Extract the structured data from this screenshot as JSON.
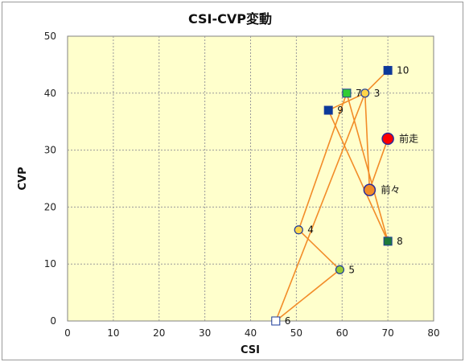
{
  "chart_data": {
    "type": "scatter",
    "title": "CSI-CVP変動",
    "xlabel": "CSI",
    "ylabel": "CVP",
    "xlim": [
      0,
      80
    ],
    "ylim": [
      0,
      50
    ],
    "xticks": [
      0,
      10,
      20,
      30,
      40,
      50,
      60,
      70,
      80
    ],
    "yticks": [
      0,
      10,
      20,
      30,
      40,
      50
    ],
    "grid": true,
    "plot_background": "#ffffcc",
    "line_color": "#f28c28",
    "path_order": [
      "10",
      "3",
      "9",
      "8",
      "7",
      "4",
      "5",
      "6",
      "3",
      "前々",
      "前走"
    ],
    "points": [
      {
        "label": "10",
        "x": 70,
        "y": 44,
        "marker": "square",
        "fill": "#0a3a9a"
      },
      {
        "label": "3",
        "x": 65,
        "y": 40,
        "marker": "circle",
        "fill": "#ffd54a"
      },
      {
        "label": "9",
        "x": 57,
        "y": 37,
        "marker": "square",
        "fill": "#0a3a9a"
      },
      {
        "label": "8",
        "x": 70,
        "y": 14,
        "marker": "square",
        "fill": "#1f7a3a"
      },
      {
        "label": "7",
        "x": 61,
        "y": 40,
        "marker": "square",
        "fill": "#33cc33"
      },
      {
        "label": "4",
        "x": 50.5,
        "y": 16,
        "marker": "circle",
        "fill": "#ffd54a"
      },
      {
        "label": "5",
        "x": 59.5,
        "y": 9,
        "marker": "circle",
        "fill": "#9acd32"
      },
      {
        "label": "6",
        "x": 45.5,
        "y": 0,
        "marker": "square",
        "fill": "#ffffff"
      },
      {
        "label": "前々",
        "x": 66,
        "y": 23,
        "marker": "big-circle",
        "fill": "#f28c28"
      },
      {
        "label": "前走",
        "x": 70,
        "y": 32,
        "marker": "big-circle",
        "fill": "#ff0000"
      }
    ]
  }
}
